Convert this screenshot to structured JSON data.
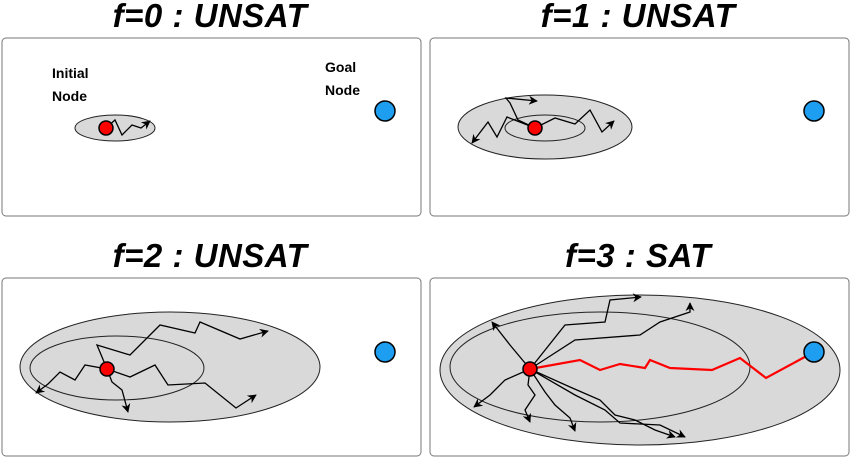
{
  "panels": [
    {
      "title": "f=0 : UNSAT"
    },
    {
      "title": "f=1 : UNSAT"
    },
    {
      "title": "f=2 : UNSAT"
    },
    {
      "title": "f=3 : SAT"
    }
  ],
  "labels": {
    "initial_node": [
      "Initial",
      "Node"
    ],
    "goal_node": [
      "Goal",
      "Node"
    ]
  },
  "colors": {
    "initial_node": "#ff0000",
    "goal_node": "#1e9ef0",
    "search_region": "#d9d9d9",
    "solution_path": "#ff0000"
  }
}
